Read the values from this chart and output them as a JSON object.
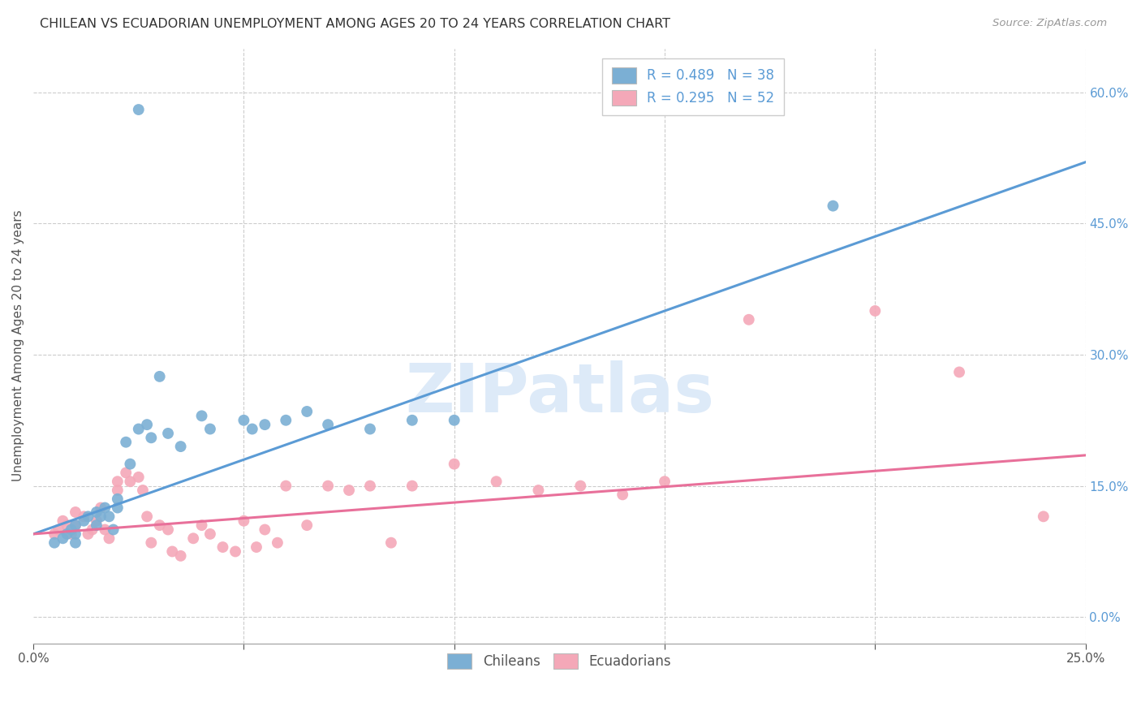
{
  "title": "CHILEAN VS ECUADORIAN UNEMPLOYMENT AMONG AGES 20 TO 24 YEARS CORRELATION CHART",
  "source": "Source: ZipAtlas.com",
  "ylabel": "Unemployment Among Ages 20 to 24 years",
  "xlim": [
    0.0,
    0.25
  ],
  "ylim": [
    -0.03,
    0.65
  ],
  "yticks": [
    0.0,
    0.15,
    0.3,
    0.45,
    0.6
  ],
  "xticks": [
    0.0,
    0.05,
    0.1,
    0.15,
    0.2,
    0.25
  ],
  "xtick_labels": [
    "0.0%",
    "",
    "",
    "",
    "",
    "25.0%"
  ],
  "chilean_color": "#7bafd4",
  "ecuadorian_color": "#f4a8b8",
  "chilean_line_color": "#5b9bd5",
  "ecuadorian_line_color": "#e8709a",
  "chilean_R": 0.489,
  "chilean_N": 38,
  "ecuadorian_R": 0.295,
  "ecuadorian_N": 52,
  "background_color": "#ffffff",
  "grid_color": "#cccccc",
  "chilean_x": [
    0.005,
    0.007,
    0.008,
    0.009,
    0.01,
    0.01,
    0.01,
    0.012,
    0.013,
    0.015,
    0.015,
    0.016,
    0.017,
    0.018,
    0.019,
    0.02,
    0.02,
    0.022,
    0.023,
    0.025,
    0.027,
    0.028,
    0.03,
    0.032,
    0.035,
    0.04,
    0.042,
    0.05,
    0.052,
    0.055,
    0.06,
    0.065,
    0.07,
    0.08,
    0.09,
    0.1,
    0.19,
    0.025
  ],
  "chilean_y": [
    0.085,
    0.09,
    0.095,
    0.1,
    0.105,
    0.095,
    0.085,
    0.11,
    0.115,
    0.12,
    0.105,
    0.115,
    0.125,
    0.115,
    0.1,
    0.135,
    0.125,
    0.2,
    0.175,
    0.215,
    0.22,
    0.205,
    0.275,
    0.21,
    0.195,
    0.23,
    0.215,
    0.225,
    0.215,
    0.22,
    0.225,
    0.235,
    0.22,
    0.215,
    0.225,
    0.225,
    0.47,
    0.58
  ],
  "ecuadorian_x": [
    0.005,
    0.006,
    0.007,
    0.008,
    0.009,
    0.01,
    0.01,
    0.012,
    0.013,
    0.014,
    0.015,
    0.016,
    0.017,
    0.018,
    0.02,
    0.02,
    0.022,
    0.023,
    0.025,
    0.026,
    0.027,
    0.028,
    0.03,
    0.032,
    0.033,
    0.035,
    0.038,
    0.04,
    0.042,
    0.045,
    0.048,
    0.05,
    0.053,
    0.055,
    0.058,
    0.06,
    0.065,
    0.07,
    0.075,
    0.08,
    0.085,
    0.09,
    0.1,
    0.11,
    0.12,
    0.13,
    0.14,
    0.15,
    0.17,
    0.2,
    0.22,
    0.24
  ],
  "ecuadorian_y": [
    0.095,
    0.1,
    0.11,
    0.105,
    0.095,
    0.12,
    0.105,
    0.115,
    0.095,
    0.1,
    0.11,
    0.125,
    0.1,
    0.09,
    0.155,
    0.145,
    0.165,
    0.155,
    0.16,
    0.145,
    0.115,
    0.085,
    0.105,
    0.1,
    0.075,
    0.07,
    0.09,
    0.105,
    0.095,
    0.08,
    0.075,
    0.11,
    0.08,
    0.1,
    0.085,
    0.15,
    0.105,
    0.15,
    0.145,
    0.15,
    0.085,
    0.15,
    0.175,
    0.155,
    0.145,
    0.15,
    0.14,
    0.155,
    0.34,
    0.35,
    0.28,
    0.115
  ],
  "chilean_line_x0": 0.0,
  "chilean_line_y0": 0.095,
  "chilean_line_x1": 0.25,
  "chilean_line_y1": 0.52,
  "ecuadorian_line_x0": 0.0,
  "ecuadorian_line_y0": 0.095,
  "ecuadorian_line_x1": 0.25,
  "ecuadorian_line_y1": 0.185
}
